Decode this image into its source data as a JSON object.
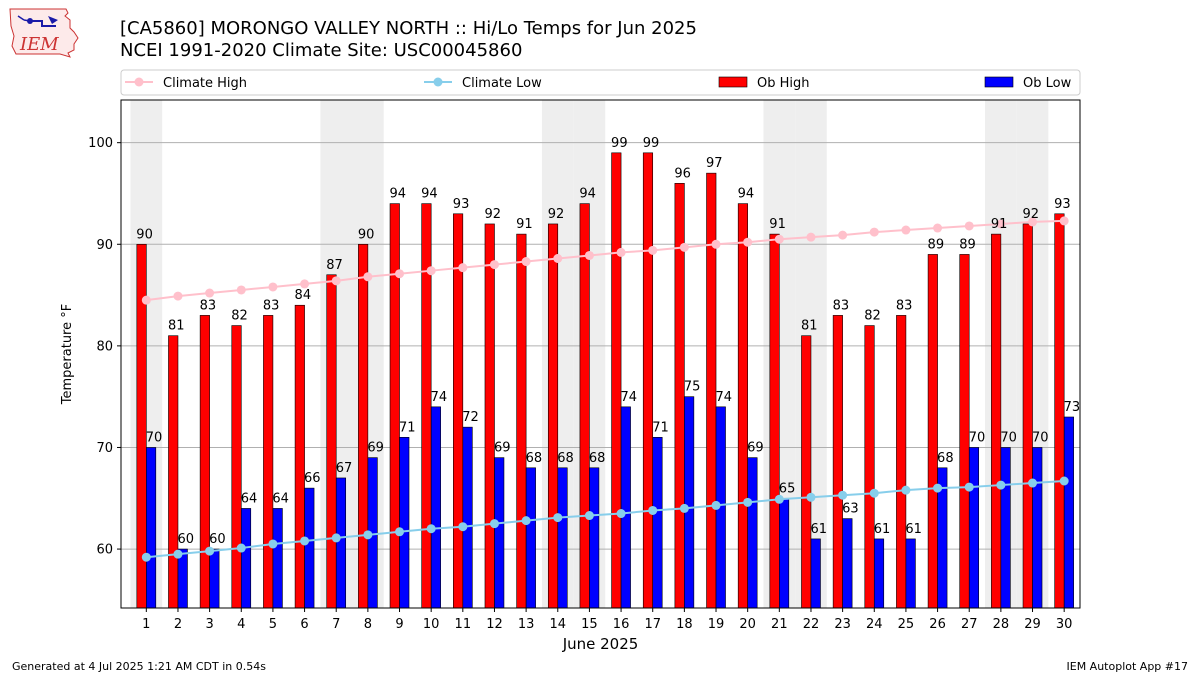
{
  "header": {
    "logo_text": "IEM",
    "title_line1": "[CA5860] MORONGO VALLEY NORTH :: Hi/Lo Temps for Jun 2025",
    "title_line2": "NCEI 1991-2020 Climate Site: USC00045860"
  },
  "footer": {
    "generated": "Generated at 4 Jul 2025 1:21 AM CDT in 0.54s",
    "app": "IEM Autoplot App #17"
  },
  "chart_data": {
    "type": "bar",
    "xlabel": "June 2025",
    "ylabel": "Temperature °F",
    "ylim": [
      54.2,
      104.2
    ],
    "yticks": [
      60,
      70,
      80,
      90,
      100
    ],
    "grid": "horizontal",
    "legend_placement": "top, single row",
    "shaded_weekend_days": [
      1,
      7,
      8,
      14,
      15,
      21,
      22,
      28,
      29
    ],
    "categories": [
      "1",
      "2",
      "3",
      "4",
      "5",
      "6",
      "7",
      "8",
      "9",
      "10",
      "11",
      "12",
      "13",
      "14",
      "15",
      "16",
      "17",
      "18",
      "19",
      "20",
      "21",
      "22",
      "23",
      "24",
      "25",
      "26",
      "27",
      "28",
      "29",
      "30"
    ],
    "series": [
      {
        "name": "Climate High",
        "kind": "line",
        "color": "#ffc0cb",
        "values": [
          84.5,
          84.9,
          85.2,
          85.5,
          85.8,
          86.1,
          86.4,
          86.8,
          87.1,
          87.4,
          87.7,
          88.0,
          88.3,
          88.6,
          88.9,
          89.2,
          89.4,
          89.7,
          90.0,
          90.2,
          90.5,
          90.7,
          90.9,
          91.2,
          91.4,
          91.6,
          91.8,
          92.0,
          92.2,
          92.3
        ]
      },
      {
        "name": "Climate Low",
        "kind": "line",
        "color": "#87ceeb",
        "values": [
          59.2,
          59.5,
          59.8,
          60.1,
          60.5,
          60.8,
          61.1,
          61.4,
          61.7,
          62.0,
          62.2,
          62.5,
          62.8,
          63.1,
          63.3,
          63.5,
          63.8,
          64.0,
          64.3,
          64.6,
          64.9,
          65.1,
          65.3,
          65.5,
          65.8,
          66.0,
          66.1,
          66.3,
          66.5,
          66.7
        ]
      },
      {
        "name": "Ob High",
        "kind": "bar",
        "color": "#ff0000",
        "values": [
          90,
          81,
          83,
          82,
          83,
          84,
          87,
          90,
          94,
          94,
          93,
          92,
          91,
          92,
          94,
          99,
          99,
          96,
          97,
          94,
          91,
          81,
          83,
          82,
          83,
          89,
          89,
          91,
          92,
          93
        ]
      },
      {
        "name": "Ob Low",
        "kind": "bar",
        "color": "#0000ff",
        "values": [
          70,
          60,
          60,
          64,
          64,
          66,
          67,
          69,
          71,
          74,
          72,
          69,
          68,
          68,
          68,
          74,
          71,
          75,
          74,
          69,
          65,
          61,
          63,
          61,
          61,
          68,
          70,
          70,
          70,
          73
        ]
      }
    ]
  }
}
